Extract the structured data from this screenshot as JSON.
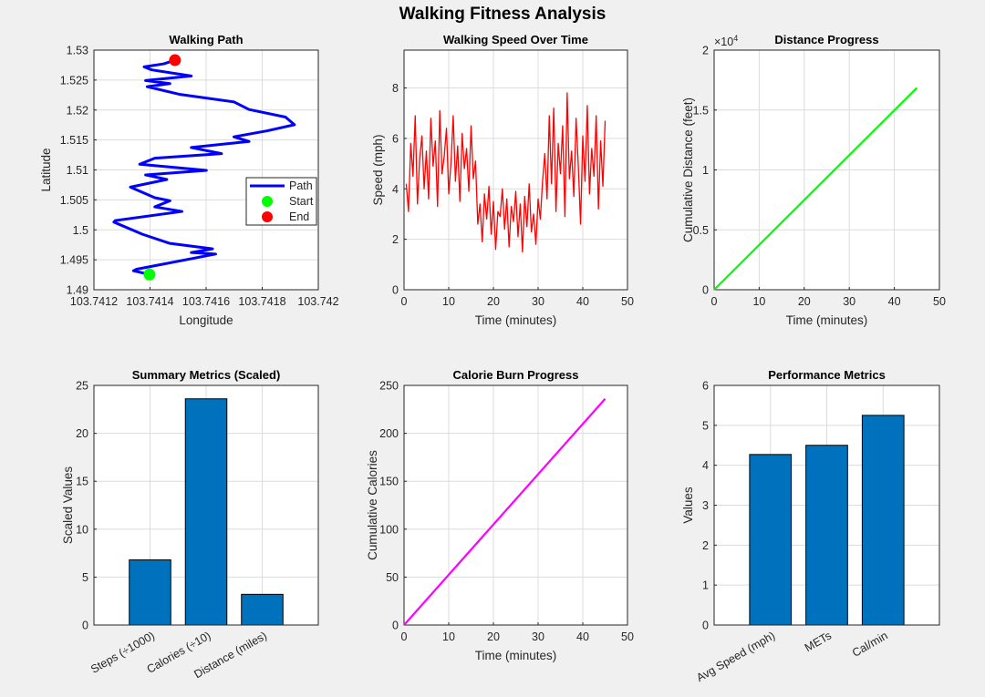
{
  "figure": {
    "title": "Walking Fitness Analysis",
    "background": "#f0f0f0"
  },
  "chart_data": [
    {
      "type": "line",
      "title": "Walking Path",
      "xlabel": "Longitude",
      "ylabel": "Latitude",
      "xlim": [
        103.7412,
        103.742
      ],
      "ylim": [
        1.49,
        1.53
      ],
      "xticks": [
        "103.7412",
        "103.7414",
        "103.7416",
        "103.7418",
        "103.742"
      ],
      "yticks": [
        "1.49",
        "1.495",
        "1.5",
        "1.505",
        "1.51",
        "1.515",
        "1.52",
        "1.525",
        "1.53"
      ],
      "grid": true,
      "legend": {
        "placement": "right",
        "entries": [
          "Path",
          "Start",
          "End"
        ]
      },
      "series": [
        {
          "name": "Path",
          "color": "#0000ff",
          "lon": [
            103.741398,
            103.741341,
            103.741352,
            103.741634,
            103.741547,
            103.741623,
            103.741471,
            103.741373,
            103.741271,
            103.741276,
            103.741514,
            103.741417,
            103.741471,
            103.741417,
            103.74133,
            103.74146,
            103.741384,
            103.741601,
            103.741363,
            103.741417,
            103.741655,
            103.741547,
            103.741753,
            103.741699,
            103.741818,
            103.741915,
            103.741883,
            103.741753,
            103.741699,
            103.741504,
            103.74139,
            103.741471,
            103.741384,
            103.741547,
            103.741406,
            103.741379,
            103.741449,
            103.741489
          ],
          "lat": [
            1.49255,
            1.49316,
            1.49342,
            1.49596,
            1.49621,
            1.49682,
            1.49773,
            1.49926,
            1.50129,
            1.50154,
            1.50307,
            1.50383,
            1.50485,
            1.50536,
            1.50713,
            1.5084,
            1.50917,
            1.50993,
            1.51095,
            1.51196,
            1.51272,
            1.51374,
            1.51476,
            1.51552,
            1.51653,
            1.51755,
            1.51882,
            1.52009,
            1.52136,
            1.52263,
            1.5239,
            1.52441,
            1.52492,
            1.52568,
            1.5267,
            1.5272,
            1.52771,
            1.52832
          ]
        },
        {
          "name": "Start",
          "color": "#00ff00",
          "lon": [
            103.741398
          ],
          "lat": [
            1.49255
          ]
        },
        {
          "name": "End",
          "color": "#ff0000",
          "lon": [
            103.741489
          ],
          "lat": [
            1.52832
          ]
        }
      ]
    },
    {
      "type": "line",
      "title": "Walking Speed Over Time",
      "xlabel": "Time (minutes)",
      "ylabel": "Speed (mph)",
      "xlim": [
        0,
        50
      ],
      "ylim": [
        0,
        9.5
      ],
      "xticks": [
        "0",
        "10",
        "20",
        "30",
        "40",
        "50"
      ],
      "yticks": [
        "0",
        "2",
        "4",
        "6",
        "8"
      ],
      "grid": true,
      "series": [
        {
          "color": "#ff0000",
          "x_step_minutes": 0.5,
          "values": [
            4.2,
            3.1,
            5.8,
            4.5,
            6.9,
            3.4,
            5.2,
            6.1,
            4.0,
            5.5,
            3.6,
            6.8,
            4.9,
            5.9,
            3.3,
            7.1,
            4.6,
            5.3,
            6.4,
            3.8,
            5.0,
            6.9,
            4.3,
            5.7,
            3.5,
            6.2,
            4.8,
            5.6,
            3.9,
            6.5,
            4.4,
            5.1,
            2.6,
            3.4,
            1.9,
            3.8,
            2.8,
            4.1,
            2.2,
            3.5,
            1.6,
            3.1,
            2.9,
            4.0,
            2.4,
            3.6,
            1.7,
            3.3,
            2.7,
            3.9,
            2.1,
            3.4,
            1.5,
            3.7,
            2.5,
            4.2,
            2.3,
            3.0,
            1.8,
            3.6,
            2.8,
            4.3,
            5.4,
            3.6,
            6.9,
            4.2,
            7.2,
            3.1,
            5.8,
            4.6,
            6.5,
            2.9,
            7.8,
            4.4,
            5.5,
            3.7,
            6.8,
            4.9,
            2.6,
            6.1,
            4.3,
            7.3,
            3.8,
            5.6,
            4.5,
            6.9,
            3.2,
            5.9,
            4.1,
            6.7
          ]
        }
      ]
    },
    {
      "type": "line",
      "title": "Distance Progress",
      "xlabel": "Time (minutes)",
      "ylabel": "Cumulative Distance (feet)",
      "exponent_label": "×10",
      "exponent": "4",
      "xlim": [
        0,
        50
      ],
      "ylim": [
        0,
        20000
      ],
      "xticks": [
        "0",
        "10",
        "20",
        "30",
        "40",
        "50"
      ],
      "yticks": [
        "0",
        "0.5",
        "1",
        "1.5",
        "2"
      ],
      "grid": true,
      "series": [
        {
          "color": "#00ff00",
          "x": [
            0,
            45
          ],
          "y": [
            0,
            16850
          ]
        }
      ]
    },
    {
      "type": "bar",
      "title": "Summary Metrics (Scaled)",
      "ylabel": "Scaled Values",
      "categories": [
        "Steps (÷1000)",
        "Calories (÷10)",
        "Distance (miles)"
      ],
      "values": [
        6.8,
        23.6,
        3.2
      ],
      "ylim": [
        0,
        25
      ],
      "yticks": [
        "0",
        "5",
        "10",
        "15",
        "20",
        "25"
      ],
      "color": "#0072bd",
      "grid": true
    },
    {
      "type": "line",
      "title": "Calorie Burn Progress",
      "xlabel": "Time (minutes)",
      "ylabel": "Cumulative Calories",
      "xlim": [
        0,
        50
      ],
      "ylim": [
        0,
        250
      ],
      "xticks": [
        "0",
        "10",
        "20",
        "30",
        "40",
        "50"
      ],
      "yticks": [
        "0",
        "50",
        "100",
        "150",
        "200",
        "250"
      ],
      "grid": true,
      "series": [
        {
          "color": "#ff00ff",
          "x": [
            0,
            45
          ],
          "y": [
            0,
            236
          ]
        }
      ]
    },
    {
      "type": "bar",
      "title": "Performance Metrics",
      "ylabel": "Values",
      "categories": [
        "Avg Speed (mph)",
        "METs",
        "Cal/min"
      ],
      "values": [
        4.27,
        4.5,
        5.25
      ],
      "ylim": [
        0,
        6
      ],
      "yticks": [
        "0",
        "1",
        "2",
        "3",
        "4",
        "5",
        "6"
      ],
      "color": "#0072bd",
      "grid": true
    }
  ]
}
